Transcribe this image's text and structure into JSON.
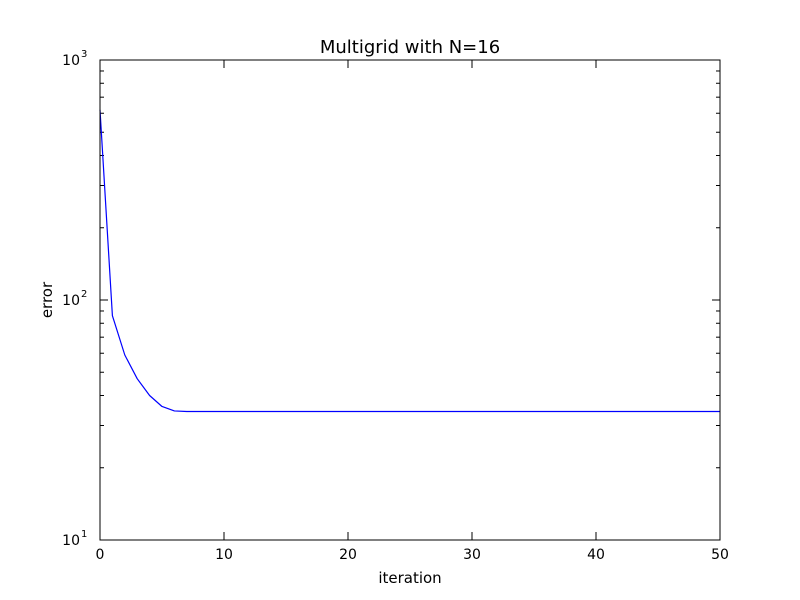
{
  "chart_data": {
    "type": "line",
    "title": "Multigrid with N=16",
    "xlabel": "iteration",
    "ylabel": "error",
    "xlim": [
      0,
      50
    ],
    "ylim": [
      10,
      1000
    ],
    "yscale": "log",
    "grid": false,
    "legend": "none",
    "x_ticks": [
      {
        "value": 0,
        "label": "0"
      },
      {
        "value": 10,
        "label": "10"
      },
      {
        "value": 20,
        "label": "20"
      },
      {
        "value": 30,
        "label": "30"
      },
      {
        "value": 40,
        "label": "40"
      },
      {
        "value": 50,
        "label": "50"
      }
    ],
    "y_ticks": [
      {
        "value": 10,
        "base": "10",
        "exp": "1"
      },
      {
        "value": 100,
        "base": "10",
        "exp": "2"
      },
      {
        "value": 1000,
        "base": "10",
        "exp": "3"
      }
    ],
    "series": [
      {
        "color": "#0000ff",
        "x": [
          0,
          1,
          2,
          3,
          4,
          5,
          6,
          7,
          8,
          9,
          10,
          11,
          12,
          13,
          14,
          15,
          16,
          17,
          18,
          19,
          20,
          21,
          22,
          23,
          24,
          25,
          26,
          27,
          28,
          29,
          30,
          31,
          32,
          33,
          34,
          35,
          36,
          37,
          38,
          39,
          40,
          41,
          42,
          43,
          44,
          45,
          46,
          47,
          48,
          49,
          50
        ],
        "y": [
          620,
          86,
          59,
          47,
          40,
          36,
          34.5,
          34.3,
          34.3,
          34.3,
          34.3,
          34.3,
          34.3,
          34.3,
          34.3,
          34.3,
          34.3,
          34.3,
          34.3,
          34.3,
          34.3,
          34.3,
          34.3,
          34.3,
          34.3,
          34.3,
          34.3,
          34.3,
          34.3,
          34.3,
          34.3,
          34.3,
          34.3,
          34.3,
          34.3,
          34.3,
          34.3,
          34.3,
          34.3,
          34.3,
          34.3,
          34.3,
          34.3,
          34.3,
          34.3,
          34.3,
          34.3,
          34.3,
          34.3,
          34.3,
          34.3
        ]
      }
    ]
  }
}
